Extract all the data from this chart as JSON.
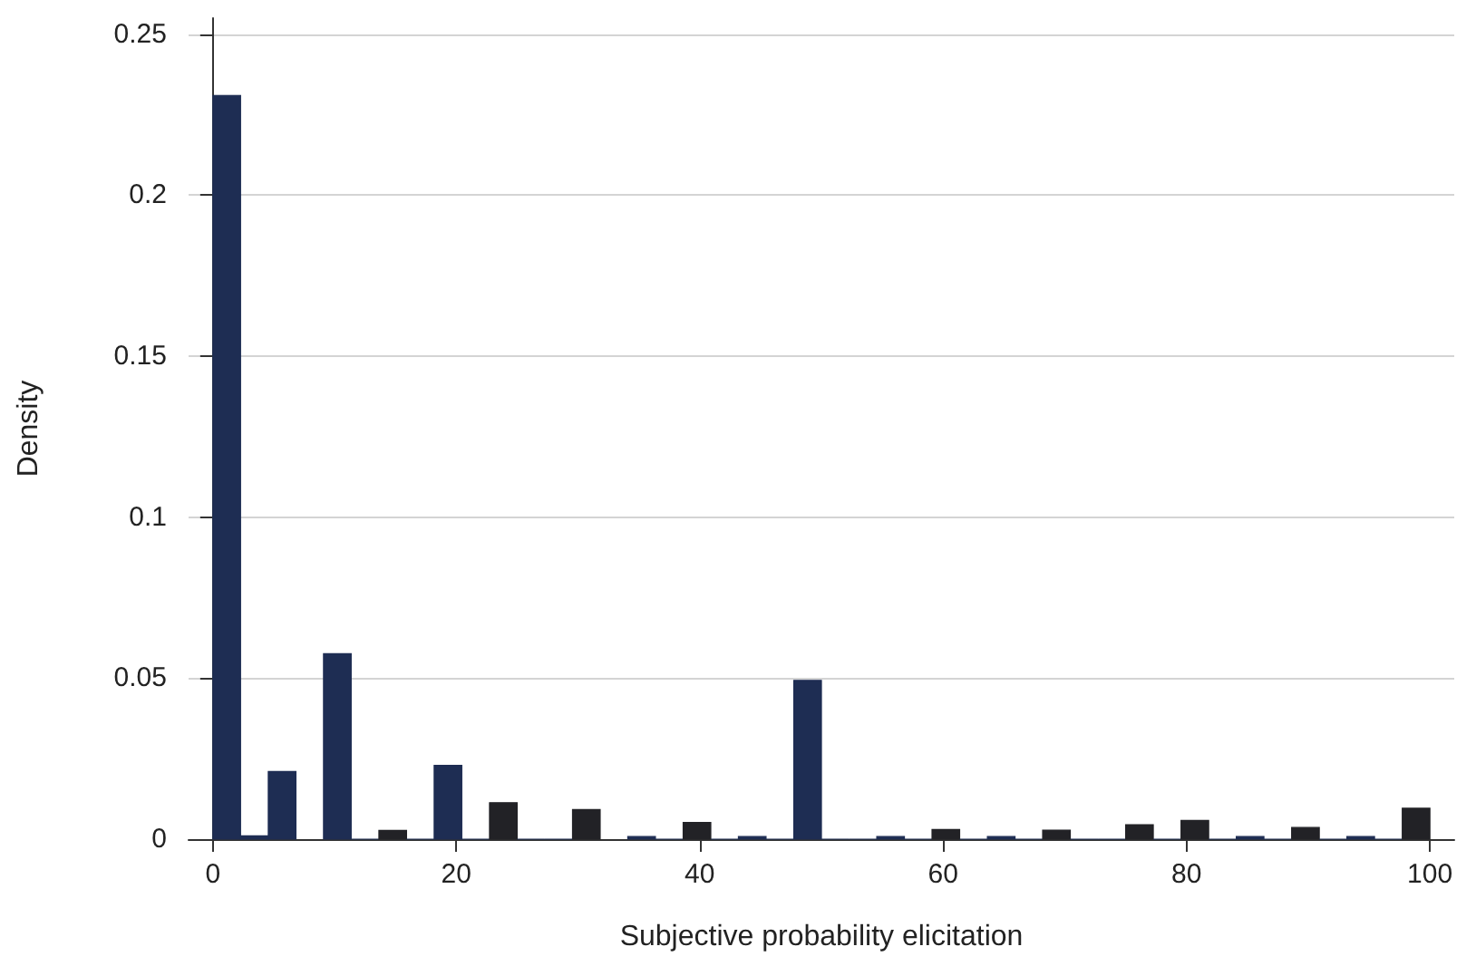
{
  "chart_data": {
    "type": "histogram",
    "xlabel": "Subjective probability elicitation",
    "ylabel": "Density",
    "bins": [
      0,
      2.27,
      4.55,
      6.82,
      9.09,
      11.36,
      13.64,
      15.91,
      18.18,
      20.45,
      22.73,
      25,
      27.27,
      29.55,
      31.82,
      34.09,
      36.36,
      38.64,
      40.91,
      43.18,
      45.45,
      47.73,
      50,
      52.27,
      54.55,
      56.82,
      59.09,
      61.36,
      63.64,
      65.91,
      68.18,
      70.45,
      72.73,
      75,
      77.27,
      79.55,
      81.82,
      84.09,
      86.36,
      88.64,
      90.91,
      93.18,
      95.45,
      97.73,
      100
    ],
    "values": [
      0.231,
      0.001,
      0.021,
      null,
      0.0576,
      0,
      0.0027,
      0,
      0.0229,
      0,
      0.0113,
      0,
      0,
      0.0092,
      null,
      0.0008,
      0,
      0.0052,
      0,
      0.0008,
      0,
      0.0493,
      0,
      0,
      0.0008,
      0,
      0.003,
      0,
      0.0008,
      0,
      0.0028,
      0,
      0,
      0.0045,
      0,
      0.0058,
      0,
      0.0008,
      0,
      0.0036,
      0,
      0.0008,
      0,
      0.0096
    ],
    "colors": [
      "#1e2d53",
      "#1e2d53",
      "#1e2d53",
      "#1e2d53",
      "#1e2d53",
      "#1e2d53",
      "#222226",
      "#1e2d53",
      "#1e2d53",
      "#1e2d53",
      "#222226",
      "#1e2d53",
      "#1e2d53",
      "#222226",
      "#1e2d53",
      "#1e2d53",
      "#1e2d53",
      "#222226",
      "#1e2d53",
      "#1e2d53",
      "#1e2d53",
      "#1e2d53",
      "#1e2d53",
      "#1e2d53",
      "#1e2d53",
      "#1e2d53",
      "#222226",
      "#1e2d53",
      "#1e2d53",
      "#1e2d53",
      "#222226",
      "#1e2d53",
      "#1e2d53",
      "#222226",
      "#1e2d53",
      "#222226",
      "#1e2d53",
      "#1e2d53",
      "#1e2d53",
      "#222226",
      "#1e2d53",
      "#1e2d53",
      "#1e2d53",
      "#222226"
    ],
    "xlim": [
      -2,
      102
    ],
    "xticks": [
      0,
      20,
      40,
      60,
      80,
      100
    ],
    "ylim": [
      0,
      0.255
    ],
    "yticks": [
      0,
      0.05,
      0.1,
      0.15,
      0.2,
      0.25
    ],
    "grid": "y"
  }
}
